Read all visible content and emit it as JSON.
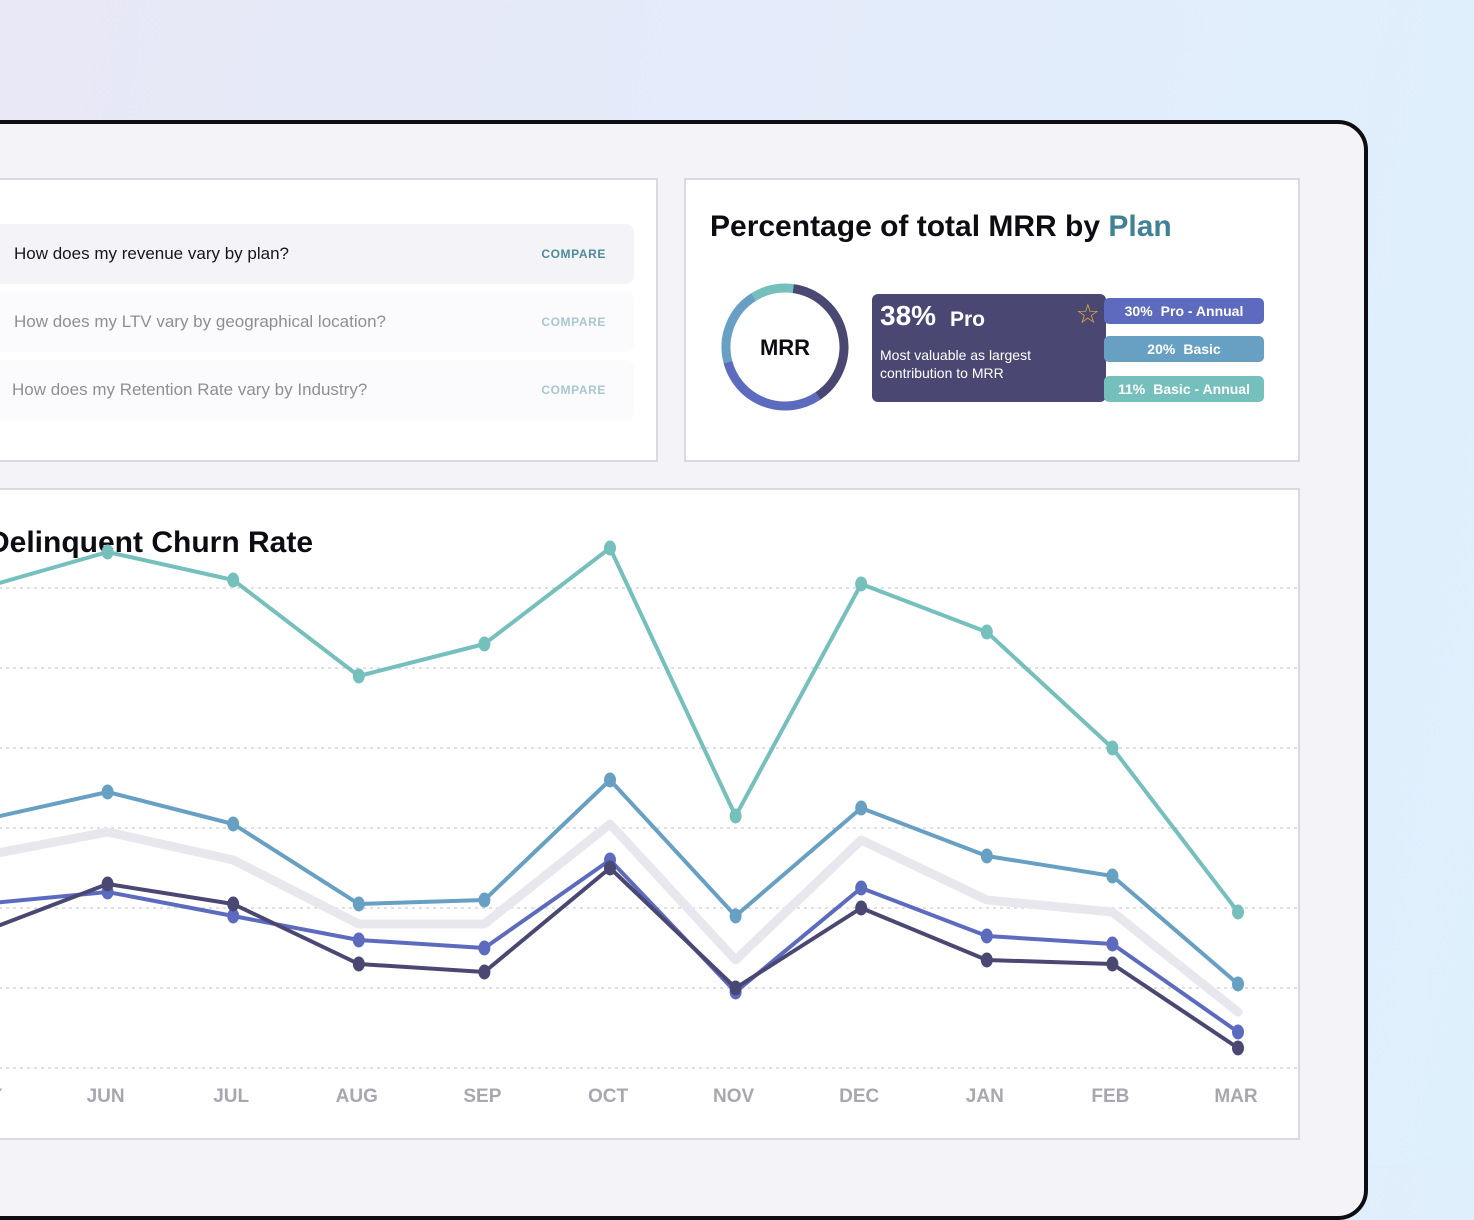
{
  "questions": {
    "items": [
      {
        "text": "How does my revenue vary by plan?",
        "action": "COMPARE",
        "active": true
      },
      {
        "text": "How does my LTV vary by geographical location?",
        "action": "COMPARE",
        "active": false
      },
      {
        "text": "How does my Retention Rate vary by Industry?",
        "action": "COMPARE",
        "active": false
      }
    ],
    "icon": "question-circle-icon"
  },
  "mrr": {
    "title_main": "Percentage of total MRR by ",
    "title_accent": "Plan",
    "donut_label": "MRR",
    "top_plan": {
      "pct": "38%",
      "name": "Pro",
      "description": "Most valuable as largest contribution to MRR",
      "icon": "star-icon"
    },
    "legend": [
      {
        "pct": "30%",
        "name": "Pro - Annual",
        "color": "#5d6bbf"
      },
      {
        "pct": "20%",
        "name": "Basic",
        "color": "#68a0c3"
      },
      {
        "pct": "11%",
        "name": "Basic - Annual",
        "color": "#75bfbd"
      }
    ],
    "top_plan_color": "#4a4873",
    "donut_segments": [
      {
        "value": 38,
        "color": "#4a4873"
      },
      {
        "value": 30,
        "color": "#5d6bbf"
      },
      {
        "value": 20,
        "color": "#68a0c3"
      },
      {
        "value": 11,
        "color": "#75bfbd"
      }
    ]
  },
  "chart_data": {
    "type": "line",
    "title": "Delinquent Churn Rate",
    "categories": [
      "MAY",
      "JUN",
      "JUL",
      "AUG",
      "SEP",
      "OCT",
      "NOV",
      "DEC",
      "JAN",
      "FEB",
      "MAR"
    ],
    "series": [
      {
        "color": "#75bfbd",
        "values": [
          6.0,
          6.45,
          6.1,
          4.9,
          5.3,
          6.5,
          3.15,
          6.05,
          5.45,
          4.0,
          1.95
        ]
      },
      {
        "color": "#68a0c3",
        "values": [
          3.1,
          3.45,
          3.05,
          2.05,
          2.1,
          3.6,
          1.9,
          3.25,
          2.65,
          2.4,
          1.05
        ]
      },
      {
        "color": "#e8e7ee",
        "shadow": true,
        "values": [
          2.65,
          2.95,
          2.6,
          1.8,
          1.8,
          3.05,
          1.35,
          2.85,
          2.1,
          1.95,
          0.7
        ]
      },
      {
        "color": "#5d6bbf",
        "values": [
          2.05,
          2.2,
          1.9,
          1.6,
          1.5,
          2.6,
          0.95,
          2.25,
          1.65,
          1.55,
          0.45
        ]
      },
      {
        "color": "#4a4873",
        "values": [
          1.7,
          2.3,
          2.05,
          1.3,
          1.2,
          2.5,
          1.0,
          2.0,
          1.35,
          1.3,
          0.25
        ]
      }
    ],
    "ylim": [
      0,
      6
    ]
  }
}
